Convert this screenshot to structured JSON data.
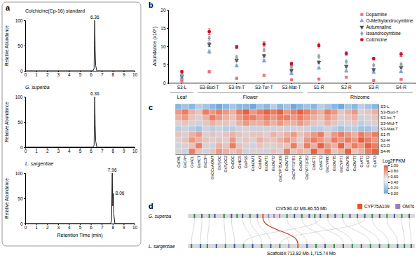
{
  "panel_labels": [
    "a",
    "b",
    "c",
    "d"
  ],
  "chart_data": [
    {
      "type": "line",
      "title": "Colchicine(Cp-16) standard",
      "x": [
        0,
        6.2,
        6.3,
        6.33,
        6.36,
        6.4,
        6.45,
        6.55,
        10
      ],
      "values": [
        0,
        0,
        5,
        60,
        100,
        40,
        10,
        0,
        0
      ],
      "color": "#1a1a1a",
      "xlim": [
        0,
        10
      ],
      "xticks": [
        0,
        1,
        2,
        3,
        4,
        5,
        6,
        7,
        8,
        9,
        10
      ],
      "ylim": [
        0,
        100
      ],
      "yticks": [
        0,
        50,
        100
      ],
      "y_label": "Relative Abundance",
      "annotations": [
        {
          "x": 6.36,
          "text": "6.36"
        }
      ]
    },
    {
      "type": "line",
      "title": "G. superba",
      "x": [
        0,
        6.2,
        6.3,
        6.33,
        6.36,
        6.4,
        6.45,
        6.55,
        10
      ],
      "values": [
        0,
        0,
        4,
        55,
        100,
        45,
        12,
        0,
        0
      ],
      "color": "#1a1a1a",
      "xlim": [
        0,
        10
      ],
      "xticks": [
        0,
        1,
        2,
        3,
        4,
        5,
        6,
        7,
        8,
        9,
        10
      ],
      "ylim": [
        0,
        100
      ],
      "yticks": [
        0,
        50,
        100
      ],
      "y_label": "Relative Abundance",
      "annotations": [
        {
          "x": 6.36,
          "text": "6.36"
        }
      ]
    },
    {
      "type": "line",
      "title": "L. sargentiae",
      "x": [
        0,
        7.8,
        7.9,
        7.93,
        7.96,
        8.0,
        8.03,
        8.06,
        8.1,
        8.2,
        10
      ],
      "values": [
        0,
        0,
        5,
        60,
        100,
        35,
        40,
        60,
        20,
        0,
        0
      ],
      "color": "#1a1a1a",
      "xlim": [
        0,
        10
      ],
      "xticks": [
        0,
        1,
        2,
        3,
        4,
        5,
        6,
        7,
        8,
        9,
        10
      ],
      "ylim": [
        0,
        100
      ],
      "yticks": [
        0,
        50,
        100
      ],
      "y_label": "Relative Abundance",
      "x_label": "Retention Time (min)",
      "annotations": [
        {
          "x": 7.96,
          "text": "7.96"
        },
        {
          "x": 8.06,
          "text": "8.06"
        }
      ]
    },
    {
      "type": "dot",
      "categories": [
        "S3-L",
        "S3-Bud-T",
        "S3-Ini-T",
        "S3-Tur-T",
        "S3-Mat-T",
        "S1-R",
        "S2-R",
        "S3-R",
        "S4-R"
      ],
      "category_groups": [
        {
          "name": "Leaf",
          "categories": [
            "S3-L"
          ]
        },
        {
          "name": "Flower",
          "categories": [
            "S3-Bud-T",
            "S3-Ini-T",
            "S3-Tur-T",
            "S3-Mat-T"
          ]
        },
        {
          "name": "Rhizome",
          "categories": [
            "S1-R",
            "S2-R",
            "S3-R",
            "S4-R"
          ]
        }
      ],
      "y_label": "Abundance (x10⁸)",
      "ylim": [
        0,
        20
      ],
      "yticks": [
        0,
        5,
        10,
        15,
        20
      ],
      "legend": "upper right",
      "series": [
        {
          "name": "Dopamine",
          "color": "#e8737a",
          "marker": "square",
          "values": [
            0.5,
            3.0,
            1.2,
            2.0,
            0.8,
            1.0,
            1.5,
            0.6,
            0.9
          ],
          "errors": [
            0.1,
            0.3,
            0.2,
            0.2,
            0.1,
            0.2,
            0.2,
            0.1,
            0.1
          ]
        },
        {
          "name": "O-Methylandrocymbine",
          "color": "#7fa6d6",
          "marker": "triangle",
          "values": [
            1.2,
            8.5,
            4.6,
            6.0,
            2.5,
            4.0,
            3.2,
            2.8,
            3.0
          ],
          "errors": [
            0.2,
            0.5,
            0.3,
            0.4,
            0.2,
            0.3,
            0.3,
            0.2,
            0.2
          ]
        },
        {
          "name": "Autumnaline",
          "color": "#555555",
          "marker": "triangle-down",
          "values": [
            1.8,
            10.5,
            6.2,
            7.4,
            3.4,
            5.6,
            4.5,
            3.6,
            4.2
          ],
          "errors": [
            0.2,
            0.6,
            0.4,
            0.4,
            0.3,
            0.4,
            0.3,
            0.3,
            0.3
          ]
        },
        {
          "name": "Isoandrocymbine",
          "color": "#9aa6b4",
          "marker": "diamond",
          "values": [
            2.2,
            12.2,
            7.0,
            9.0,
            4.4,
            7.2,
            5.8,
            4.8,
            5.0
          ],
          "errors": [
            0.3,
            0.6,
            0.4,
            0.5,
            0.3,
            0.5,
            0.4,
            0.3,
            0.4
          ]
        },
        {
          "name": "Colchicine",
          "color": "#c8102e",
          "marker": "circle",
          "values": [
            3.0,
            14.0,
            9.8,
            10.6,
            5.2,
            10.2,
            8.0,
            6.6,
            7.8
          ],
          "errors": [
            0.3,
            0.8,
            0.5,
            0.6,
            0.4,
            0.7,
            0.5,
            0.4,
            0.6
          ]
        }
      ]
    },
    {
      "type": "heatmap",
      "categories": [
        "GsPAL",
        "GsC4H",
        "Gs4CL",
        "GsHCT",
        "GsC3H",
        "GsCCoAOMT",
        "GsTyDC",
        "GsTyDC2",
        "GsDDC",
        "GsNCS",
        "GsPSS",
        "Gs6OMT",
        "GsNMT",
        "GsOMT1",
        "GsOMT2",
        "GsCYP75A109",
        "GsOMT3",
        "GsCYP71FB1",
        "GsOMT4",
        "GsCYP71FB2",
        "GsNFT1",
        "GsNFT2",
        "GsCYP80",
        "GsOMT5",
        "GsCYP71",
        "GsOMT6",
        "GsOMT7",
        "GsAT1",
        "GsAT2",
        "GsAT3"
      ],
      "rows": [
        "S3-L",
        "S3-Bud-T",
        "S3-Ini-T",
        "S3-Mid-T",
        "S3-Mat-T",
        "S1-R",
        "S2-R",
        "S3-R",
        "S4-R"
      ],
      "cells": [
        [
          0.1,
          0.2,
          0.1,
          0.3,
          0.2,
          0.1,
          0.0,
          0.1,
          0.2,
          0.1,
          0.1,
          0.0,
          0.2,
          0.1,
          0.3,
          0.1,
          0.2,
          0.0,
          0.1,
          0.2,
          0.1,
          0.3,
          0.2,
          0.1,
          0.0,
          0.2,
          0.1,
          0.3,
          0.2,
          0.1
        ],
        [
          0.8,
          0.9,
          0.7,
          0.6,
          0.9,
          0.8,
          0.9,
          0.8,
          0.7,
          0.9,
          1.0,
          0.8,
          0.9,
          1.0,
          0.9,
          1.0,
          0.8,
          0.9,
          1.0,
          0.9,
          0.8,
          0.7,
          0.9,
          0.8,
          0.6,
          0.7,
          0.8,
          0.5,
          0.6,
          0.7
        ],
        [
          0.7,
          0.8,
          0.6,
          0.5,
          0.7,
          0.9,
          0.8,
          0.7,
          0.6,
          0.8,
          0.9,
          0.9,
          0.8,
          0.9,
          0.8,
          0.9,
          0.9,
          0.8,
          0.9,
          0.8,
          0.7,
          0.6,
          0.8,
          0.7,
          0.5,
          0.6,
          0.7,
          0.4,
          0.5,
          0.6
        ],
        [
          0.5,
          0.6,
          0.5,
          0.4,
          0.6,
          0.7,
          0.6,
          0.6,
          0.5,
          0.7,
          0.8,
          0.7,
          0.7,
          0.8,
          0.7,
          0.8,
          0.7,
          0.7,
          0.8,
          0.7,
          0.6,
          0.5,
          0.7,
          0.6,
          0.4,
          0.5,
          0.6,
          0.3,
          0.4,
          0.5
        ],
        [
          0.3,
          0.4,
          0.3,
          0.2,
          0.4,
          0.3,
          0.4,
          0.3,
          0.3,
          0.4,
          0.5,
          0.4,
          0.4,
          0.5,
          0.4,
          0.5,
          0.4,
          0.4,
          0.5,
          0.4,
          0.3,
          0.3,
          0.4,
          0.3,
          0.2,
          0.3,
          0.3,
          0.2,
          0.2,
          0.3
        ],
        [
          0.6,
          0.5,
          0.7,
          0.8,
          0.5,
          0.6,
          0.5,
          0.6,
          0.7,
          0.6,
          0.5,
          0.6,
          0.6,
          0.5,
          0.7,
          0.6,
          0.7,
          0.8,
          0.6,
          0.7,
          0.8,
          0.9,
          0.6,
          0.8,
          0.9,
          0.8,
          0.7,
          0.9,
          0.8,
          0.9
        ],
        [
          0.5,
          0.6,
          0.8,
          0.7,
          0.6,
          0.5,
          0.6,
          0.5,
          0.8,
          0.5,
          0.6,
          0.5,
          0.7,
          0.6,
          0.6,
          0.7,
          0.8,
          0.7,
          0.5,
          0.8,
          0.9,
          0.8,
          0.7,
          0.9,
          0.8,
          0.9,
          0.8,
          1.0,
          0.9,
          0.8
        ],
        [
          0.4,
          0.5,
          0.6,
          0.9,
          0.5,
          0.4,
          0.7,
          0.6,
          0.9,
          0.6,
          0.5,
          0.4,
          0.6,
          0.5,
          0.5,
          0.6,
          0.6,
          0.9,
          0.6,
          0.9,
          0.7,
          1.0,
          0.8,
          0.7,
          1.0,
          0.7,
          0.9,
          0.8,
          1.0,
          0.9
        ],
        [
          0.5,
          0.4,
          0.9,
          0.6,
          0.4,
          0.6,
          0.8,
          0.7,
          0.6,
          0.7,
          0.4,
          0.5,
          0.5,
          0.4,
          0.6,
          0.5,
          0.9,
          0.6,
          0.7,
          0.6,
          1.0,
          0.7,
          0.9,
          0.6,
          0.7,
          1.0,
          0.6,
          0.7,
          0.9,
          1.0
        ]
      ],
      "colors": [
        "#6fa8dc",
        "#f4f4f4",
        "#e8613f"
      ],
      "colorbar": {
        "label": "Log2FPKM",
        "range": [
          0,
          1
        ],
        "ticks": [
          {
            "value": 0,
            "label": "0.00"
          },
          {
            "value": 0.2,
            "label": "0.20"
          },
          {
            "value": 0.4,
            "label": "0.40"
          },
          {
            "value": 0.6,
            "label": "0.60"
          },
          {
            "value": 0.8,
            "label": "0.80"
          },
          {
            "value": 1,
            "label": "1.00"
          }
        ]
      }
    }
  ],
  "synteny": {
    "legend_items": [
      {
        "name": "CYP75A109",
        "color": "#e8542a"
      },
      {
        "name": "OMTs",
        "color": "#9b7cc4"
      }
    ],
    "tracks": [
      {
        "species": "G. superba",
        "label": "Chr5:80.42 Mb-86.55 Mb",
        "range": [
          80.42,
          86.55
        ],
        "genes": [
          80.6,
          80.8,
          81.0,
          81.15,
          81.4,
          81.6,
          81.75,
          81.9,
          82.1,
          82.3,
          82.45,
          82.6,
          82.75,
          82.9,
          83.1,
          83.3,
          83.5,
          83.7,
          83.85,
          84.0,
          84.2,
          84.4,
          84.6,
          84.8,
          85.0,
          85.2,
          85.4,
          85.6,
          85.8,
          86.0,
          86.2,
          86.4
        ],
        "colors": [
          "#2e8b57",
          "#3b5ba9",
          "#2e8b57",
          "#3b5ba9",
          "#2e8b57",
          "#3b5ba9",
          "#2e8b57",
          "#3b5ba9",
          "#2e8b57",
          "#3b5ba9",
          "#e8542a",
          "#9b7cc4",
          "#9b7cc4",
          "#9b7cc4",
          "#2e8b57",
          "#3b5ba9",
          "#2e8b57",
          "#3b5ba9",
          "#2e8b57",
          "#3b5ba9",
          "#2e8b57",
          "#3b5ba9",
          "#2e8b57",
          "#3b5ba9",
          "#2e8b57",
          "#3b5ba9",
          "#2e8b57",
          "#3b5ba9",
          "#2e8b57",
          "#3b5ba9",
          "#2e8b57",
          "#3b5ba9"
        ]
      },
      {
        "species": "L. sargentiae",
        "label": "Scaffold4:713.82 Mb-1,715.74 Mb",
        "range": [
          713.82,
          1715.74
        ],
        "genes": [
          730,
          770,
          800,
          840,
          880,
          920,
          960,
          1000,
          1040,
          1080,
          1120,
          1160,
          1200,
          1240,
          1280,
          1320,
          1360,
          1400,
          1440,
          1480,
          1520,
          1560,
          1600,
          1640,
          1670,
          1700
        ],
        "colors": [
          "#2e8b57",
          "#3b5ba9",
          "#2e8b57",
          "#3b5ba9",
          "#2e8b57",
          "#3b5ba9",
          "#2e8b57",
          "#3b5ba9",
          "#2e8b57",
          "#3b5ba9",
          "#2e8b57",
          "#9b7cc4",
          "#e8542a",
          "#3b5ba9",
          "#2e8b57",
          "#3b5ba9",
          "#2e8b57",
          "#3b5ba9",
          "#2e8b57",
          "#3b5ba9",
          "#2e8b57",
          "#3b5ba9",
          "#2e8b57",
          "#3b5ba9",
          "#2e8b57",
          "#3b5ba9"
        ]
      }
    ],
    "links": [
      {
        "from": 80.6,
        "to": 730,
        "color": "#bdbdbd"
      },
      {
        "from": 80.8,
        "to": 770,
        "color": "#bdbdbd"
      },
      {
        "from": 81.0,
        "to": 800,
        "color": "#bdbdbd"
      },
      {
        "from": 81.4,
        "to": 880,
        "color": "#bdbdbd"
      },
      {
        "from": 81.6,
        "to": 920,
        "color": "#bdbdbd"
      },
      {
        "from": 81.9,
        "to": 1000,
        "color": "#bdbdbd"
      },
      {
        "from": 82.1,
        "to": 1040,
        "color": "#bdbdbd"
      },
      {
        "from": 82.3,
        "to": 1080,
        "color": "#bdbdbd"
      },
      {
        "from": 82.6,
        "to": 1160,
        "color": "#bdbdbd"
      },
      {
        "from": 83.1,
        "to": 1240,
        "color": "#bdbdbd"
      },
      {
        "from": 83.5,
        "to": 1320,
        "color": "#bdbdbd"
      },
      {
        "from": 83.85,
        "to": 1400,
        "color": "#bdbdbd"
      },
      {
        "from": 84.0,
        "to": 960,
        "color": "#bdbdbd"
      },
      {
        "from": 84.2,
        "to": 1440,
        "color": "#bdbdbd"
      },
      {
        "from": 84.6,
        "to": 1520,
        "color": "#bdbdbd"
      },
      {
        "from": 85.0,
        "to": 1560,
        "color": "#bdbdbd"
      },
      {
        "from": 85.2,
        "to": 1120,
        "color": "#bdbdbd"
      },
      {
        "from": 85.4,
        "to": 1600,
        "color": "#bdbdbd"
      },
      {
        "from": 85.8,
        "to": 1640,
        "color": "#bdbdbd"
      },
      {
        "from": 86.2,
        "to": 1670,
        "color": "#bdbdbd"
      },
      {
        "from": 86.4,
        "to": 1700,
        "color": "#bdbdbd"
      },
      {
        "from": 82.45,
        "to": 1200,
        "color": "#c0392b"
      }
    ]
  }
}
